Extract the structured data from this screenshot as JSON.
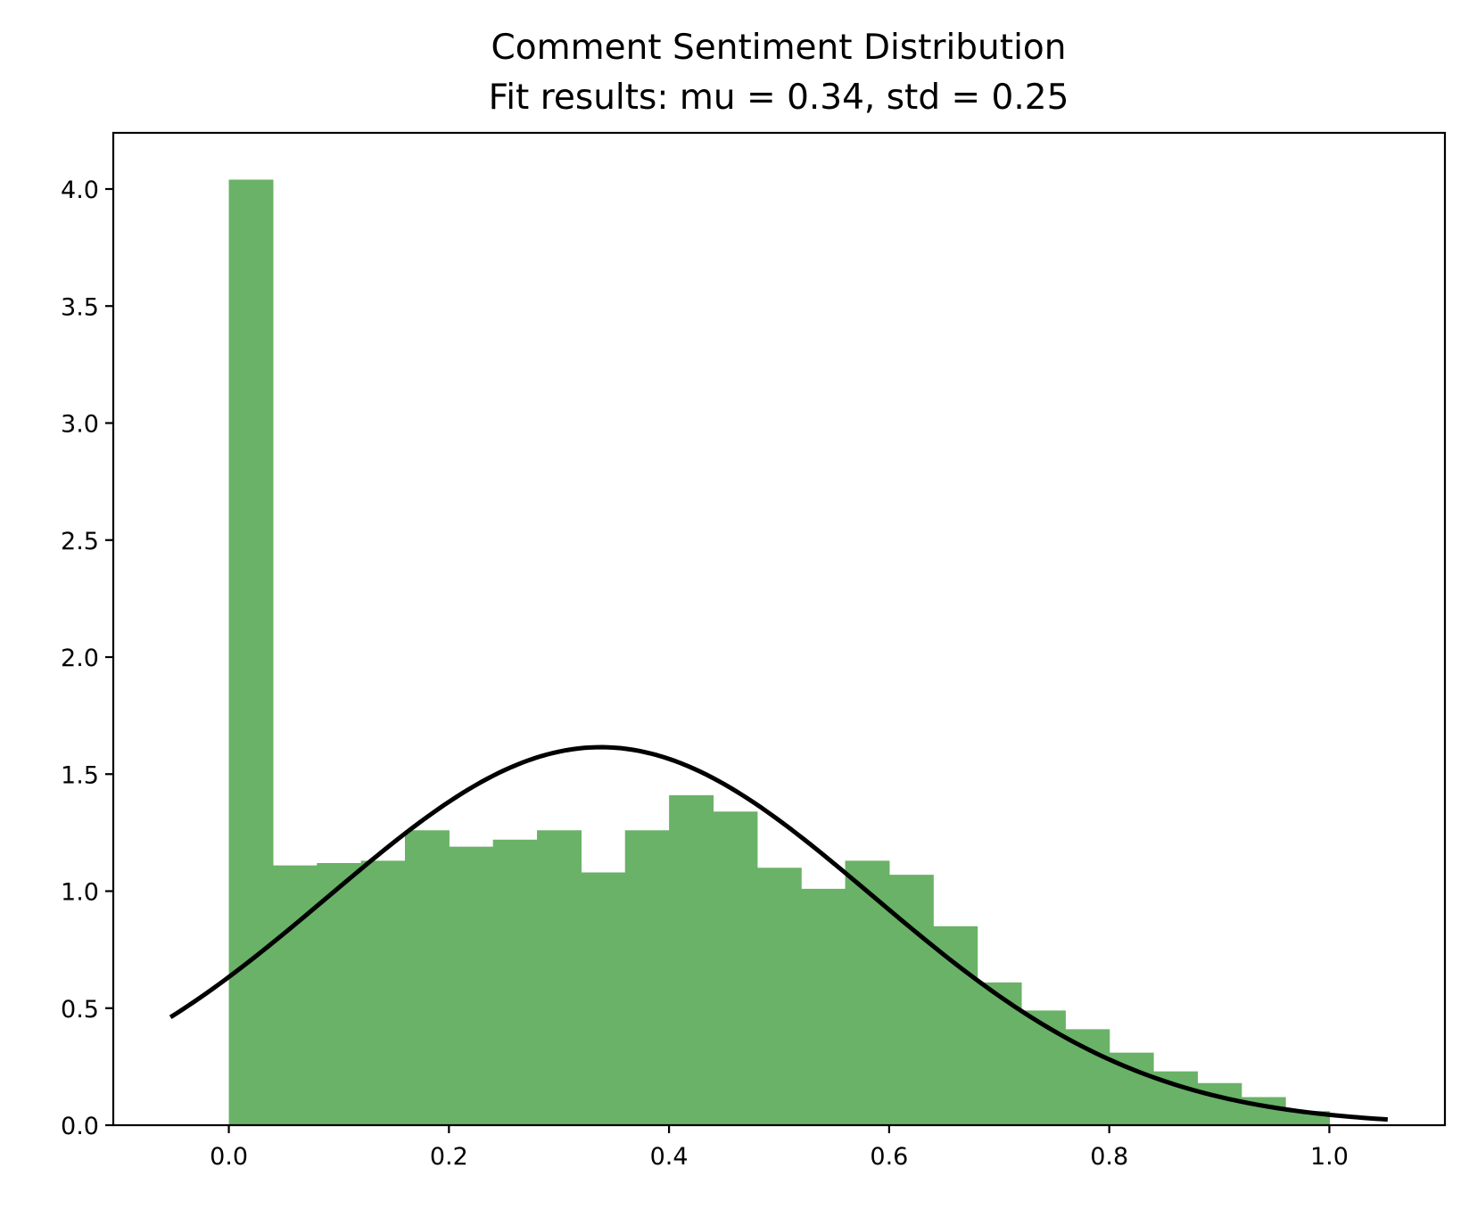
{
  "chart_data": {
    "type": "bar",
    "title": "Comment Sentiment Distribution",
    "subtitle": "Fit results: mu = 0.34,  std = 0.25",
    "xlabel": "",
    "ylabel": "",
    "xlim": [
      -0.105,
      1.105
    ],
    "ylim": [
      0,
      4.24
    ],
    "xticks": [
      0.0,
      0.2,
      0.4,
      0.6,
      0.8,
      1.0
    ],
    "xtick_labels": [
      "0.0",
      "0.2",
      "0.4",
      "0.6",
      "0.8",
      "1.0"
    ],
    "yticks": [
      0.0,
      0.5,
      1.0,
      1.5,
      2.0,
      2.5,
      3.0,
      3.5,
      4.0
    ],
    "ytick_labels": [
      "0.0",
      "0.5",
      "1.0",
      "1.5",
      "2.0",
      "2.5",
      "3.0",
      "3.5",
      "4.0"
    ],
    "grid": false,
    "histogram": {
      "bin_start": 0.0,
      "bin_width": 0.04,
      "values": [
        4.04,
        1.11,
        1.12,
        1.13,
        1.26,
        1.19,
        1.22,
        1.26,
        1.08,
        1.26,
        1.41,
        1.34,
        1.1,
        1.01,
        1.13,
        1.07,
        0.85,
        0.61,
        0.49,
        0.41,
        0.31,
        0.23,
        0.18,
        0.12,
        0.06
      ],
      "color": "#69b267"
    },
    "fit": {
      "distribution": "normal",
      "mu": 0.338,
      "std": 0.247,
      "x_range": [
        -0.053,
        1.053
      ],
      "color": "#000000"
    }
  }
}
